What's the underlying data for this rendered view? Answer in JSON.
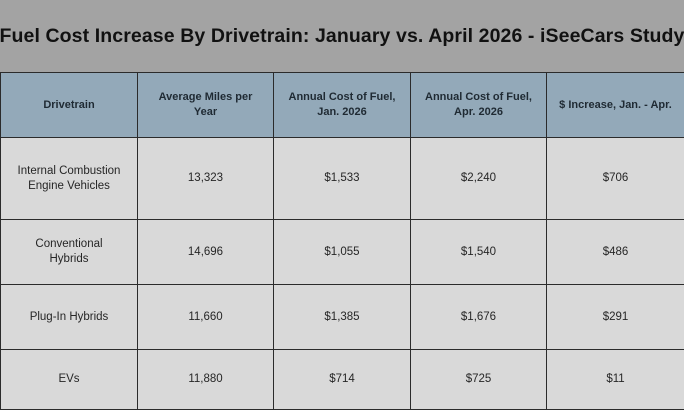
{
  "title": "Fuel Cost Increase By Drivetrain: January vs. April 2026 - iSeeCars Study",
  "table": {
    "headers": [
      "Drivetrain",
      "Average Miles per Year",
      "Annual Cost of Fuel, Jan. 2026",
      "Annual Cost of Fuel, Apr. 2026",
      "$ Increase, Jan. - Apr."
    ],
    "rows": [
      [
        "Internal Combustion Engine Vehicles",
        "13,323",
        "$1,533",
        "$2,240",
        "$706"
      ],
      [
        "Conventional Hybrids",
        "14,696",
        "$1,055",
        "$1,540",
        "$486"
      ],
      [
        "Plug-In Hybrids",
        "11,660",
        "$1,385",
        "$1,676",
        "$291"
      ],
      [
        "EVs",
        "11,880",
        "$714",
        "$725",
        "$11"
      ]
    ]
  },
  "colors": {
    "page_background": "#a3a3a3",
    "header_background": "#93a9b9",
    "cell_background": "#d9d9d9",
    "border": "#2b2b2b"
  }
}
